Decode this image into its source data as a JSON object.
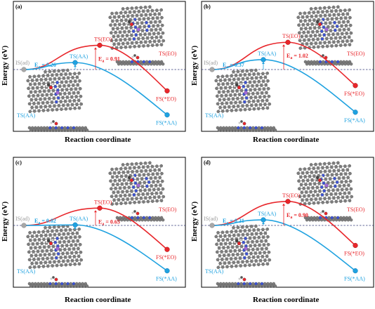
{
  "colors": {
    "eo": "#e8262b",
    "aa": "#1fa2e0",
    "is": "#a7a7a7",
    "frame": "#000000",
    "dash": "#333a78",
    "atom_c": "#7d7d7d",
    "atom_n": "#3b52d6",
    "atom_o": "#e8262b",
    "atom_h": "#dcdcdc",
    "atom_metal": "#a36bd8"
  },
  "axis": {
    "ylabel": "Energy (eV)",
    "xlabel": "Reaction coordinate"
  },
  "chart_data": [
    {
      "type": "line",
      "panel_label": "(a)",
      "xlabel": "Reaction coordinate",
      "ylabel": "Energy (eV)",
      "axis_ticks_shown": false,
      "states": {
        "initial": "IS(ad)"
      },
      "series": [
        {
          "name": "EO",
          "color": "#e8262b",
          "ts_label": "TS(EO)",
          "fs_label": "FS(*EO)",
          "barrier_label": "E",
          "barrier_subscript": "a",
          "barrier_text": " = 0.91",
          "points": [
            {
              "x": 0,
              "y": 0
            },
            {
              "x": 1,
              "y": 0.91
            },
            {
              "x": 2,
              "y": -0.8
            }
          ]
        },
        {
          "name": "AA",
          "color": "#1fa2e0",
          "ts_label": "TS(AA)",
          "fs_label": "FS(*AA)",
          "barrier_label": "E",
          "barrier_subscript": "a",
          "barrier_text": " = 0.26",
          "points": [
            {
              "x": 0,
              "y": 0
            },
            {
              "x": 1,
              "y": 0.26
            },
            {
              "x": 2,
              "y": -1.7
            }
          ]
        }
      ],
      "structure_labels": [
        "TS(EO)",
        "TS(AA)"
      ]
    },
    {
      "type": "line",
      "panel_label": "(b)",
      "xlabel": "Reaction coordinate",
      "ylabel": "Energy (eV)",
      "axis_ticks_shown": false,
      "states": {
        "initial": "IS(ad)"
      },
      "series": [
        {
          "name": "EO",
          "color": "#e8262b",
          "ts_label": "TS(EO)",
          "fs_label": "FS(*EO)",
          "barrier_label": "E",
          "barrier_subscript": "a",
          "barrier_text": " = 1.02",
          "points": [
            {
              "x": 0,
              "y": 0
            },
            {
              "x": 1,
              "y": 1.02
            },
            {
              "x": 2,
              "y": -0.6
            }
          ]
        },
        {
          "name": "AA",
          "color": "#1fa2e0",
          "ts_label": "TS(AA)",
          "fs_label": "FS(*AA)",
          "barrier_label": "E",
          "barrier_subscript": "a",
          "barrier_text": " = 0.37",
          "points": [
            {
              "x": 0,
              "y": 0
            },
            {
              "x": 1,
              "y": 0.37
            },
            {
              "x": 2,
              "y": -1.6
            }
          ]
        }
      ],
      "structure_labels": [
        "TS(EO)",
        "TS(AA)"
      ]
    },
    {
      "type": "line",
      "panel_label": "(c)",
      "xlabel": "Reaction coordinate",
      "ylabel": "Energy (eV)",
      "axis_ticks_shown": false,
      "states": {
        "initial": "IS(ad)"
      },
      "series": [
        {
          "name": "EO",
          "color": "#e8262b",
          "ts_label": "TS(EO)",
          "fs_label": "FS(*EO)",
          "barrier_label": "E",
          "barrier_subscript": "a",
          "barrier_text": " = 0.65",
          "points": [
            {
              "x": 0,
              "y": 0
            },
            {
              "x": 1,
              "y": 0.65
            },
            {
              "x": 2,
              "y": -0.9
            }
          ]
        },
        {
          "name": "AA",
          "color": "#1fa2e0",
          "ts_label": "TS(AA)",
          "fs_label": "FS(*AA)",
          "barrier_label": "E",
          "barrier_subscript": "a",
          "barrier_text": " = 0.02",
          "points": [
            {
              "x": 0,
              "y": 0
            },
            {
              "x": 1,
              "y": 0.02
            },
            {
              "x": 2,
              "y": -1.7
            }
          ]
        }
      ],
      "structure_labels": [
        "TS(EO)",
        "TS(AA)"
      ]
    },
    {
      "type": "line",
      "panel_label": "(d)",
      "xlabel": "Reaction coordinate",
      "ylabel": "Energy (eV)",
      "axis_ticks_shown": false,
      "states": {
        "initial": "IS(ad)"
      },
      "series": [
        {
          "name": "EO",
          "color": "#e8262b",
          "ts_label": "TS(EO)",
          "fs_label": "FS(*EO)",
          "barrier_label": "E",
          "barrier_subscript": "a",
          "barrier_text": " = 0.90",
          "points": [
            {
              "x": 0,
              "y": 0
            },
            {
              "x": 1,
              "y": 0.9
            },
            {
              "x": 2,
              "y": -0.75
            }
          ]
        },
        {
          "name": "AA",
          "color": "#1fa2e0",
          "ts_label": "TS(AA)",
          "fs_label": "FS(*AA)",
          "barrier_label": "E",
          "barrier_subscript": "a",
          "barrier_text": " = 0.21",
          "points": [
            {
              "x": 0,
              "y": 0
            },
            {
              "x": 1,
              "y": 0.21
            },
            {
              "x": 2,
              "y": -1.7
            }
          ]
        }
      ],
      "structure_labels": [
        "TS(EO)",
        "TS(AA)"
      ]
    }
  ]
}
